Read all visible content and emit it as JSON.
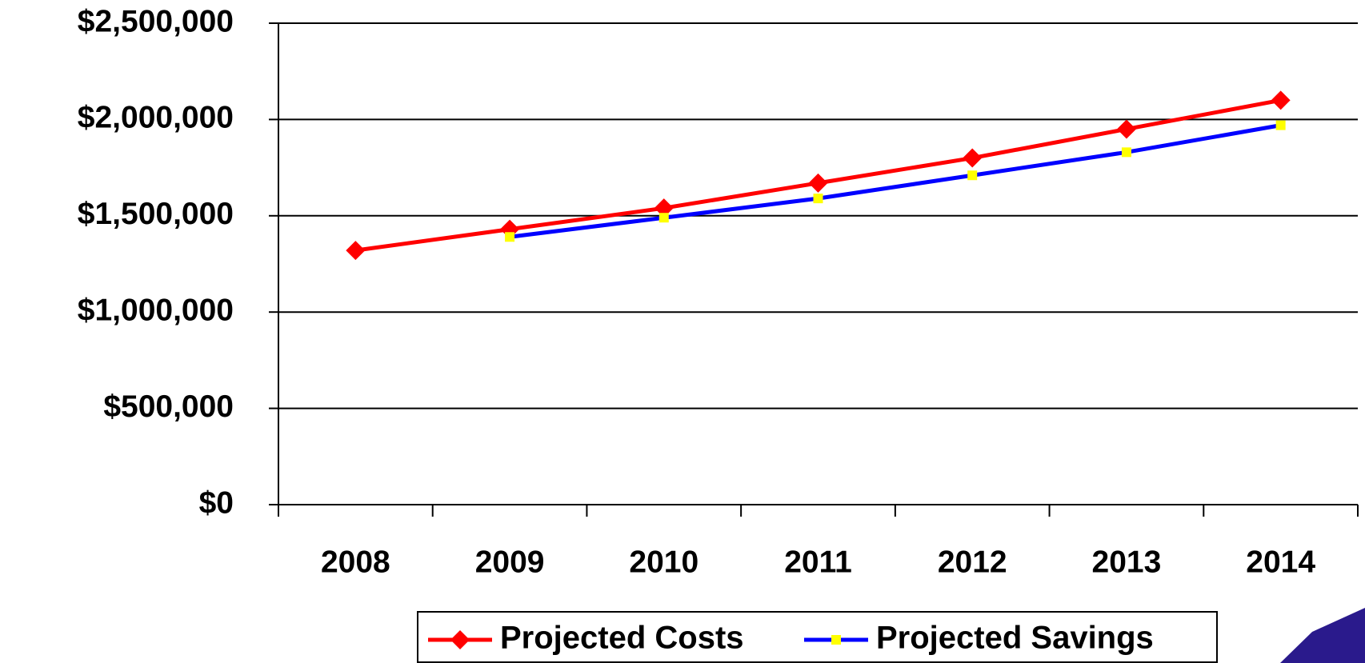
{
  "chart_data": {
    "type": "line",
    "categories": [
      "2008",
      "2009",
      "2010",
      "2011",
      "2012",
      "2013",
      "2014"
    ],
    "series": [
      {
        "name": "Projected Costs",
        "color": "#ff0000",
        "marker_color": "#ff0000",
        "values": [
          1320000,
          1430000,
          1540000,
          1670000,
          1800000,
          1950000,
          2100000
        ]
      },
      {
        "name": "Projected Savings",
        "color": "#0000ff",
        "marker_color": "#ffff00",
        "values": [
          null,
          1390000,
          1490000,
          1590000,
          1710000,
          1830000,
          1970000
        ]
      }
    ],
    "ylim": [
      0,
      2500000
    ],
    "yticks": [
      {
        "value": 0,
        "label": "$0"
      },
      {
        "value": 500000,
        "label": "$500,000"
      },
      {
        "value": 1000000,
        "label": "$1,000,000"
      },
      {
        "value": 1500000,
        "label": "$1,500,000"
      },
      {
        "value": 2000000,
        "label": "$2,000,000"
      },
      {
        "value": 2500000,
        "label": "$2,500,000"
      }
    ],
    "grid": true,
    "legend": "bottom"
  }
}
